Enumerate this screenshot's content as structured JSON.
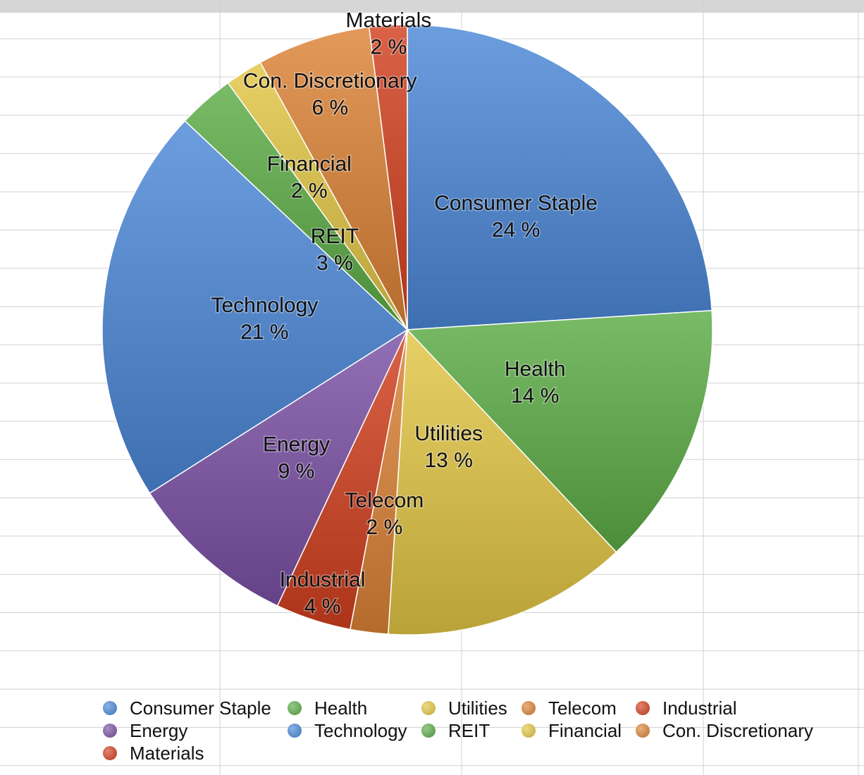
{
  "chart_data": {
    "type": "pie",
    "title": "",
    "legend_placement": "bottom",
    "grid": true,
    "slices": [
      {
        "name": "Consumer Staple",
        "value": 24,
        "label": "24 %",
        "color": "#4a87d8"
      },
      {
        "name": "Health",
        "value": 14,
        "label": "14 %",
        "color": "#5cac46"
      },
      {
        "name": "Utilities",
        "value": 13,
        "label": "13 %",
        "color": "#e2c643"
      },
      {
        "name": "Telecom",
        "value": 2,
        "label": "2 %",
        "color": "#dc8236"
      },
      {
        "name": "Industrial",
        "value": 4,
        "label": "4 %",
        "color": "#d2401f"
      },
      {
        "name": "Energy",
        "value": 9,
        "label": "9 %",
        "color": "#7b50a6"
      },
      {
        "name": "Technology",
        "value": 21,
        "label": "21 %",
        "color": "#4a87d8"
      },
      {
        "name": "REIT",
        "value": 3,
        "label": "3 %",
        "color": "#5cac46"
      },
      {
        "name": "Financial",
        "value": 2,
        "label": "2 %",
        "color": "#e2c643"
      },
      {
        "name": "Con. Discretionary",
        "value": 6,
        "label": "6 %",
        "color": "#dc8236"
      },
      {
        "name": "Materials",
        "value": 2,
        "label": "2 %",
        "color": "#d2401f"
      }
    ]
  },
  "legend": {
    "items": [
      {
        "label": "Consumer Staple",
        "color": "#4a87d8"
      },
      {
        "label": "Health",
        "color": "#5cac46"
      },
      {
        "label": "Utilities",
        "color": "#e2c643"
      },
      {
        "label": "Telecom",
        "color": "#dc8236"
      },
      {
        "label": "Industrial",
        "color": "#d2401f"
      },
      {
        "label": "Energy",
        "color": "#7b50a6"
      },
      {
        "label": "Technology",
        "color": "#4a87d8"
      },
      {
        "label": "REIT",
        "color": "#5cac46"
      },
      {
        "label": "Financial",
        "color": "#e2c643"
      },
      {
        "label": "Con. Discretionary",
        "color": "#dc8236"
      },
      {
        "label": "Materials",
        "color": "#d2401f"
      }
    ]
  }
}
